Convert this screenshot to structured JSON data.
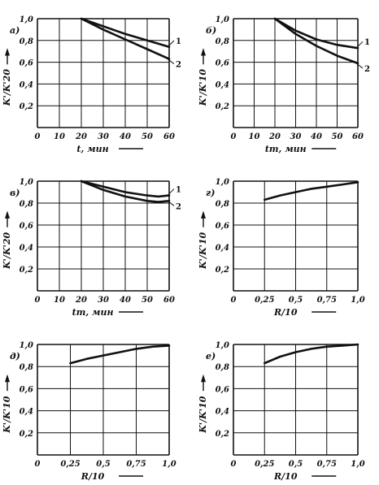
{
  "chart_data": [
    {
      "id": "a",
      "panel_label": "а)",
      "type": "line",
      "xlabel": "t, мин",
      "ylabel": "K'/K'20",
      "xlim": [
        0,
        60
      ],
      "ylim": [
        0,
        1.0
      ],
      "x_ticks": [
        "0",
        "10",
        "20",
        "30",
        "40",
        "50",
        "60"
      ],
      "y_ticks": [
        "0,2",
        "0,4",
        "0,6",
        "0,8",
        "1,0"
      ],
      "series": [
        {
          "name": "1",
          "x": [
            20,
            30,
            40,
            50,
            60
          ],
          "y": [
            1.0,
            0.93,
            0.86,
            0.8,
            0.74
          ]
        },
        {
          "name": "2",
          "x": [
            20,
            30,
            40,
            50,
            60
          ],
          "y": [
            1.0,
            0.9,
            0.81,
            0.72,
            0.63
          ]
        }
      ]
    },
    {
      "id": "b",
      "panel_label": "б)",
      "type": "line",
      "xlabel": "tm, мин",
      "ylabel": "K'/K'10",
      "xlim": [
        0,
        60
      ],
      "ylim": [
        0,
        1.0
      ],
      "x_ticks": [
        "0",
        "10",
        "20",
        "30",
        "40",
        "50",
        "60"
      ],
      "y_ticks": [
        "0,2",
        "0,4",
        "0,6",
        "0,8",
        "1,0"
      ],
      "series": [
        {
          "name": "1",
          "x": [
            20,
            30,
            40,
            50,
            60
          ],
          "y": [
            1.0,
            0.89,
            0.81,
            0.76,
            0.73
          ]
        },
        {
          "name": "2",
          "x": [
            20,
            30,
            40,
            50,
            60
          ],
          "y": [
            1.0,
            0.86,
            0.75,
            0.66,
            0.59
          ]
        }
      ]
    },
    {
      "id": "c",
      "panel_label": "в)",
      "type": "line",
      "xlabel": "tm, мин",
      "ylabel": "K'/K'20",
      "xlim": [
        0,
        60
      ],
      "ylim": [
        0,
        1.0
      ],
      "x_ticks": [
        "0",
        "10",
        "20",
        "30",
        "40",
        "50",
        "60"
      ],
      "y_ticks": [
        "0,2",
        "0,4",
        "0,6",
        "0,8",
        "1,0"
      ],
      "series": [
        {
          "name": "1",
          "x": [
            20,
            30,
            40,
            50,
            55,
            60
          ],
          "y": [
            1.0,
            0.95,
            0.9,
            0.87,
            0.86,
            0.87
          ]
        },
        {
          "name": "2",
          "x": [
            20,
            30,
            40,
            50,
            55,
            60
          ],
          "y": [
            1.0,
            0.92,
            0.86,
            0.82,
            0.81,
            0.82
          ]
        }
      ]
    },
    {
      "id": "d",
      "panel_label": "г)",
      "type": "line",
      "xlabel": "R/10",
      "ylabel": "K'/K'10",
      "xlim": [
        0,
        1.0
      ],
      "ylim": [
        0,
        1.0
      ],
      "x_ticks": [
        "0",
        "0,25",
        "0,5",
        "0,75",
        "1,0"
      ],
      "y_ticks": [
        "0,2",
        "0,4",
        "0,6",
        "0,8",
        "1,0"
      ],
      "series": [
        {
          "name": "",
          "x": [
            0.25,
            0.375,
            0.5,
            0.625,
            0.75,
            0.875,
            1.0
          ],
          "y": [
            0.83,
            0.87,
            0.9,
            0.93,
            0.95,
            0.97,
            0.99
          ]
        }
      ]
    },
    {
      "id": "e",
      "panel_label": "д)",
      "type": "line",
      "xlabel": "R/10",
      "ylabel": "K'/K'10",
      "xlim": [
        0,
        1.0
      ],
      "ylim": [
        0,
        1.0
      ],
      "x_ticks": [
        "0",
        "0,25",
        "0,5",
        "0,75",
        "1,0"
      ],
      "y_ticks": [
        "0,2",
        "0,4",
        "0,6",
        "0,8",
        "1,0"
      ],
      "series": [
        {
          "name": "",
          "x": [
            0.25,
            0.375,
            0.5,
            0.625,
            0.75,
            0.875,
            1.0
          ],
          "y": [
            0.83,
            0.87,
            0.9,
            0.93,
            0.96,
            0.98,
            0.99
          ]
        }
      ]
    },
    {
      "id": "f",
      "panel_label": "е)",
      "type": "line",
      "xlabel": "R/10",
      "ylabel": "K'/K'10",
      "xlim": [
        0,
        1.0
      ],
      "ylim": [
        0,
        1.0
      ],
      "x_ticks": [
        "0",
        "0,25",
        "0,5",
        "0,75",
        "1,0"
      ],
      "y_ticks": [
        "0,2",
        "0,4",
        "0,6",
        "0,8",
        "1,0"
      ],
      "series": [
        {
          "name": "",
          "x": [
            0.25,
            0.375,
            0.5,
            0.625,
            0.75,
            0.875,
            1.0
          ],
          "y": [
            0.83,
            0.89,
            0.93,
            0.96,
            0.98,
            0.99,
            1.0
          ]
        }
      ]
    }
  ]
}
